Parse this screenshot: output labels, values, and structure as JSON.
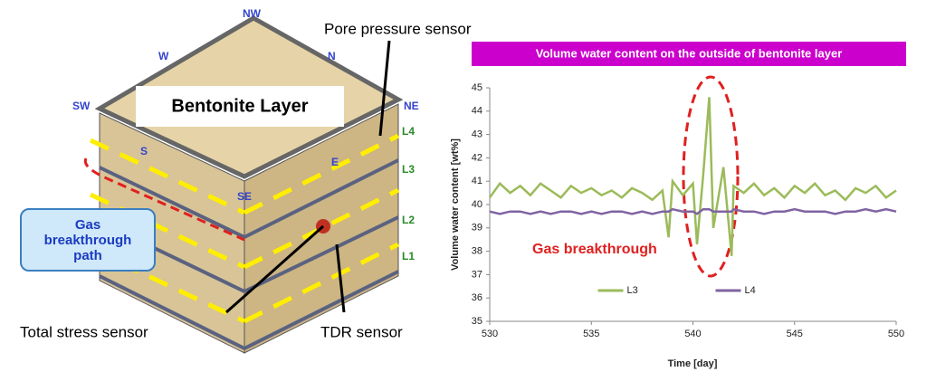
{
  "diagram": {
    "labels": {
      "nw": "NW",
      "w": "W",
      "n": "N",
      "sw": "SW",
      "ne": "NE",
      "s": "S",
      "e": "E",
      "se": "SE",
      "l4": "L4",
      "l3": "L3",
      "l2": "L2",
      "l1": "L1"
    },
    "title": "Bentonite Layer",
    "pore": "Pore pressure sensor",
    "gas_path": "Gas breakthrough path",
    "total_stress": "Total stress sensor",
    "tdr": "TDR sensor"
  },
  "chart_data": {
    "type": "line",
    "title": "Volume water content on the outside of bentonite layer",
    "x_label": "Time [day]",
    "y_label": "Volume water content [wt%]",
    "annotation": "Gas breakthrough",
    "x": [
      530,
      530.5,
      531,
      531.5,
      532,
      532.5,
      533,
      533.5,
      534,
      534.5,
      535,
      535.5,
      536,
      536.5,
      537,
      537.5,
      538,
      538.5,
      538.8,
      539,
      539.5,
      540,
      540.2,
      540.5,
      540.8,
      541,
      541.5,
      541.9,
      542,
      542.5,
      543,
      543.5,
      544,
      544.5,
      545,
      545.5,
      546,
      546.5,
      547,
      547.5,
      548,
      548.5,
      549,
      549.5,
      550
    ],
    "series": [
      {
        "name": "L3",
        "color": "#9bbb59",
        "values": [
          40.3,
          40.9,
          40.5,
          40.8,
          40.4,
          40.9,
          40.6,
          40.3,
          40.8,
          40.5,
          40.7,
          40.4,
          40.6,
          40.3,
          40.7,
          40.5,
          40.2,
          40.6,
          38.6,
          41.0,
          40.4,
          40.9,
          38.3,
          41.2,
          44.6,
          39.0,
          41.6,
          37.8,
          40.8,
          40.5,
          40.9,
          40.4,
          40.7,
          40.3,
          40.8,
          40.5,
          40.9,
          40.4,
          40.6,
          40.2,
          40.7,
          40.5,
          40.8,
          40.3,
          40.6
        ]
      },
      {
        "name": "L4",
        "color": "#8064a2",
        "values": [
          39.7,
          39.6,
          39.7,
          39.7,
          39.6,
          39.7,
          39.6,
          39.7,
          39.7,
          39.6,
          39.7,
          39.6,
          39.7,
          39.7,
          39.6,
          39.7,
          39.6,
          39.7,
          39.7,
          39.8,
          39.7,
          39.7,
          39.6,
          39.8,
          39.8,
          39.7,
          39.7,
          39.7,
          39.8,
          39.7,
          39.7,
          39.6,
          39.7,
          39.7,
          39.8,
          39.7,
          39.7,
          39.7,
          39.6,
          39.7,
          39.7,
          39.8,
          39.7,
          39.8,
          39.7
        ]
      }
    ],
    "xlim": [
      530,
      550
    ],
    "ylim": [
      35,
      45
    ],
    "xticks": [
      530,
      535,
      540,
      545,
      550
    ],
    "yticks": [
      35,
      36,
      37,
      38,
      39,
      40,
      41,
      42,
      43,
      44,
      45
    ],
    "grid": false,
    "legend": "lower center"
  }
}
